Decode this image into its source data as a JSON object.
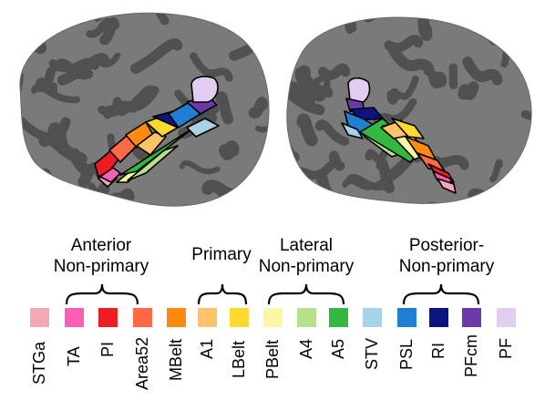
{
  "group_labels": {
    "anterior": "Anterior\nNon-primary",
    "primary": "Primary",
    "lateral": "Lateral\nNon-primary",
    "posterior": "Posterior-\nNon-primary"
  },
  "regions": [
    {
      "name": "STGa",
      "color": "#f4a7b5"
    },
    {
      "name": "TA",
      "color": "#ff5fb3"
    },
    {
      "name": "PI",
      "color": "#ef1c24"
    },
    {
      "name": "Area52",
      "color": "#ff6a45"
    },
    {
      "name": "MBelt",
      "color": "#ff8a10"
    },
    {
      "name": "A1",
      "color": "#ffc36a"
    },
    {
      "name": "LBelt",
      "color": "#ffd92f"
    },
    {
      "name": "PBelt",
      "color": "#fbf7a4"
    },
    {
      "name": "A4",
      "color": "#b8e08a"
    },
    {
      "name": "A5",
      "color": "#35b83f"
    },
    {
      "name": "STV",
      "color": "#a8d2e8"
    },
    {
      "name": "PSL",
      "color": "#1f7fd0"
    },
    {
      "name": "RI",
      "color": "#0c1480"
    },
    {
      "name": "PFcm",
      "color": "#6a3aa8"
    },
    {
      "name": "PF",
      "color": "#e3cdf0"
    }
  ],
  "brain_colors": {
    "cortex_light": "#7a7a7a",
    "cortex_dark": "#505050"
  }
}
